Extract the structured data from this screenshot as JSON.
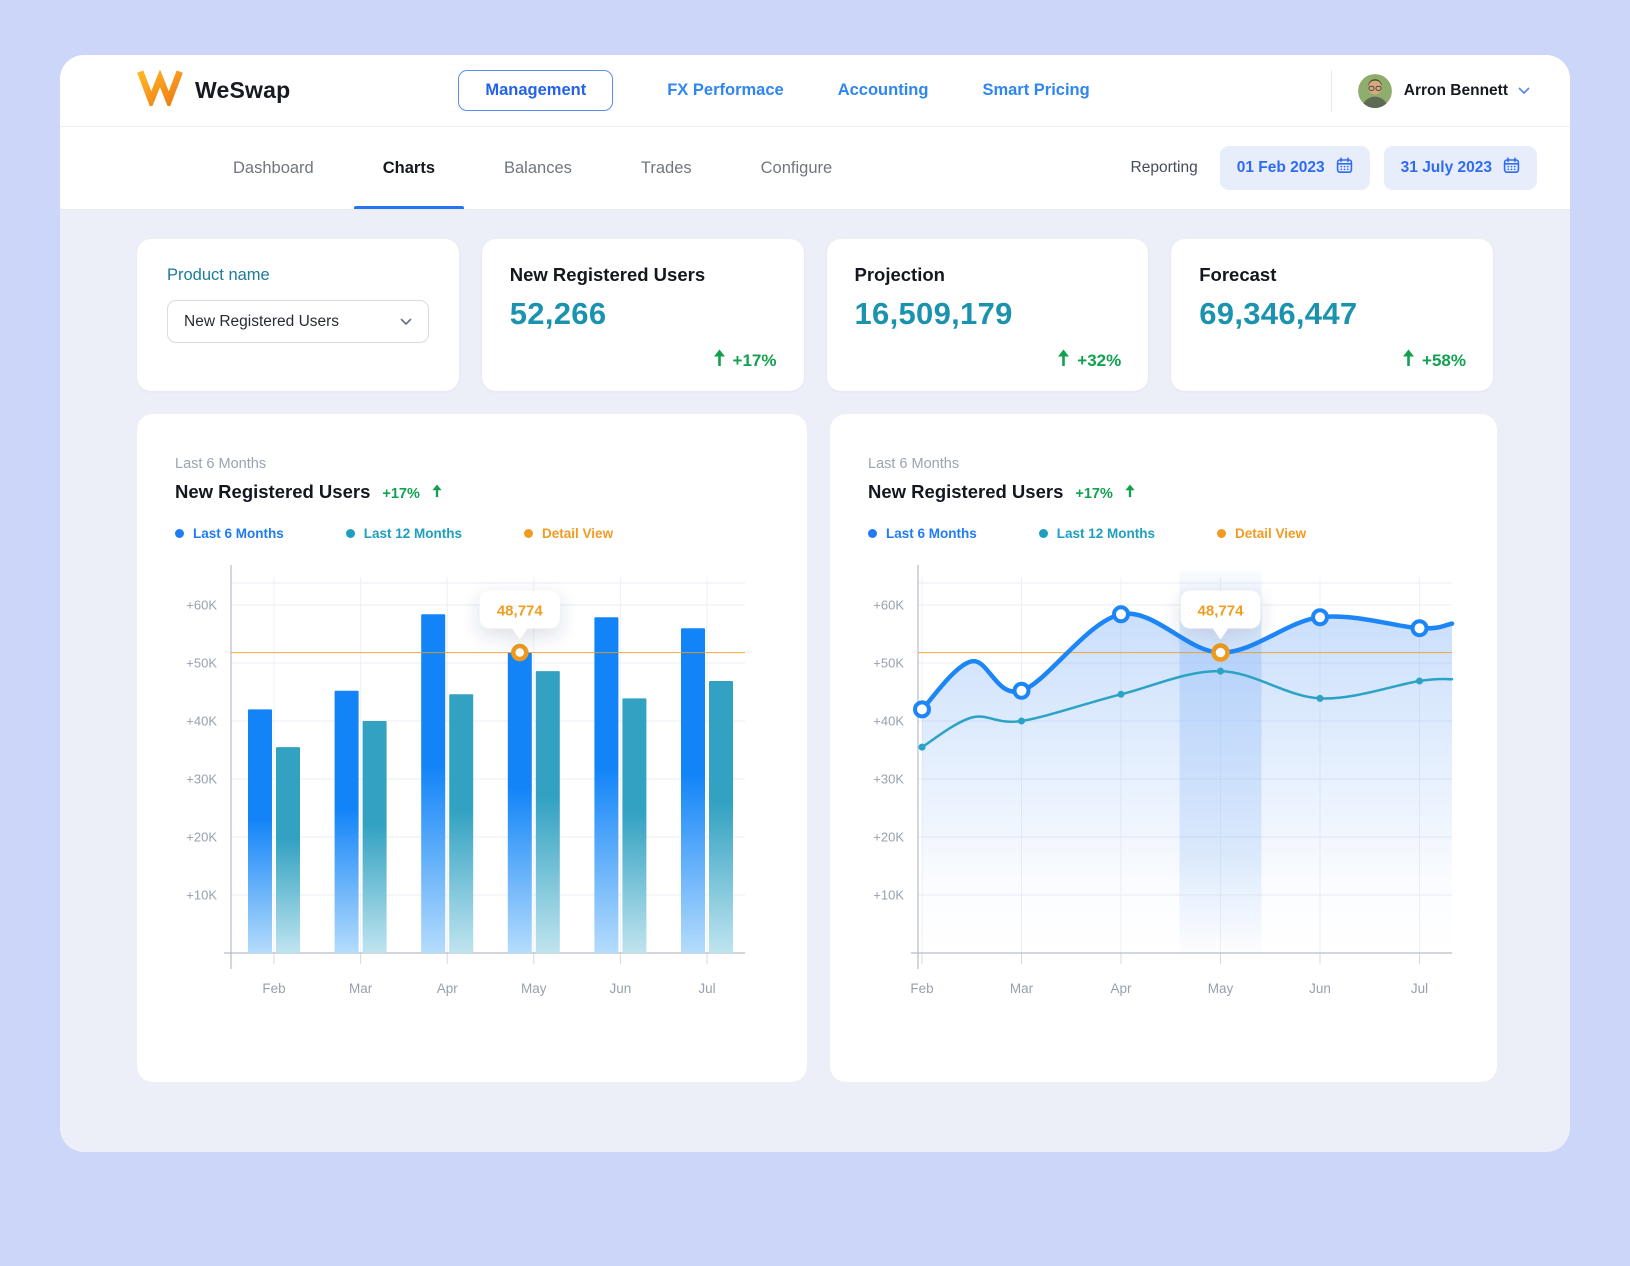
{
  "header": {
    "brand": "WeSwap",
    "nav": [
      {
        "label": "Management",
        "active": true
      },
      {
        "label": "FX Performace",
        "active": false
      },
      {
        "label": "Accounting",
        "active": false
      },
      {
        "label": "Smart Pricing",
        "active": false
      }
    ],
    "user": {
      "name": "Arron Bennett"
    }
  },
  "subnav": {
    "tabs": [
      {
        "label": "Dashboard",
        "active": false
      },
      {
        "label": "Charts",
        "active": true
      },
      {
        "label": "Balances",
        "active": false
      },
      {
        "label": "Trades",
        "active": false
      },
      {
        "label": "Configure",
        "active": false
      }
    ],
    "reporting_label": "Reporting",
    "date_from": "01 Feb 2023",
    "date_to": "31 July 2023"
  },
  "cards": {
    "product": {
      "label": "Product name",
      "selected": "New Registered Users"
    },
    "kpis": [
      {
        "title": "New Registered Users",
        "value": "52,266",
        "delta": "+17%"
      },
      {
        "title": "Projection",
        "value": "16,509,179",
        "delta": "+32%"
      },
      {
        "title": "Forecast",
        "value": "69,346,447",
        "delta": "+58%"
      }
    ]
  },
  "colors": {
    "accent_blue": "#2574F0",
    "kpi_teal": "#1B93AF",
    "positive_green": "#12A150",
    "highlight_orange": "#F09B1D",
    "brand_orange": "#F6A21D"
  },
  "chart_data": [
    {
      "type": "bar",
      "subtitle": "Last 6 Months",
      "title": "New Registered Users",
      "delta": "+17%",
      "legend": [
        {
          "label": "Last 6 Months",
          "color": "#1F7CF4"
        },
        {
          "label": "Last 12 Months",
          "color": "#1E9EC0"
        },
        {
          "label": "Detail View",
          "color": "#F29B22"
        }
      ],
      "categories": [
        "Feb",
        "Mar",
        "Apr",
        "May",
        "Jun",
        "Jul"
      ],
      "series": [
        {
          "name": "Last 6 Months",
          "color_top": "#1284F8",
          "color_bottom": "#B5DCFC",
          "values": [
            42000,
            45200,
            58400,
            51800,
            57900,
            56000
          ]
        },
        {
          "name": "Last 12 Months",
          "color_top": "#33A2C2",
          "color_bottom": "#BFE4EF",
          "values": [
            35500,
            40000,
            44600,
            48600,
            43900,
            46900
          ]
        }
      ],
      "yticks": [
        10000,
        20000,
        30000,
        40000,
        50000,
        60000
      ],
      "ytick_labels": [
        "+10K",
        "+20K",
        "+30K",
        "+40K",
        "+50K",
        "+60K"
      ],
      "ylim": [
        0,
        65000
      ],
      "grid": true,
      "highlight": {
        "category": "May",
        "tooltip": "48,774",
        "line_value": 51800,
        "color": "#F09B1D"
      }
    },
    {
      "type": "line",
      "subtitle": "Last 6 Months",
      "title": "New Registered Users",
      "delta": "+17%",
      "legend": [
        {
          "label": "Last 6 Months",
          "color": "#1F7CF4"
        },
        {
          "label": "Last 12 Months",
          "color": "#1E9EC0"
        },
        {
          "label": "Detail View",
          "color": "#F29B22"
        }
      ],
      "categories": [
        "Feb",
        "Mar",
        "Apr",
        "May",
        "Jun",
        "Jul"
      ],
      "series": [
        {
          "name": "Last 6 Months",
          "color": "#1D86F6",
          "marker": "ring",
          "area": true,
          "values": [
            42000,
            45200,
            58400,
            51800,
            57900,
            56000
          ],
          "humps": [
            {
              "after_index": 0,
              "value": 50300
            }
          ],
          "edge_end_value": 56800
        },
        {
          "name": "Last 12 Months",
          "color": "#2BA3C4",
          "marker": "dot",
          "area": false,
          "values": [
            35500,
            40000,
            44600,
            48600,
            43900,
            46900
          ],
          "humps": [
            {
              "after_index": 0,
              "value": 40600
            }
          ],
          "edge_end_value": 47200
        }
      ],
      "yticks": [
        10000,
        20000,
        30000,
        40000,
        50000,
        60000
      ],
      "ytick_labels": [
        "+10K",
        "+20K",
        "+30K",
        "+40K",
        "+50K",
        "+60K"
      ],
      "ylim": [
        0,
        65000
      ],
      "grid": true,
      "highlight": {
        "category": "May",
        "tooltip": "48,774",
        "line_value": 51800,
        "color": "#F09B1D",
        "band": true
      }
    }
  ]
}
